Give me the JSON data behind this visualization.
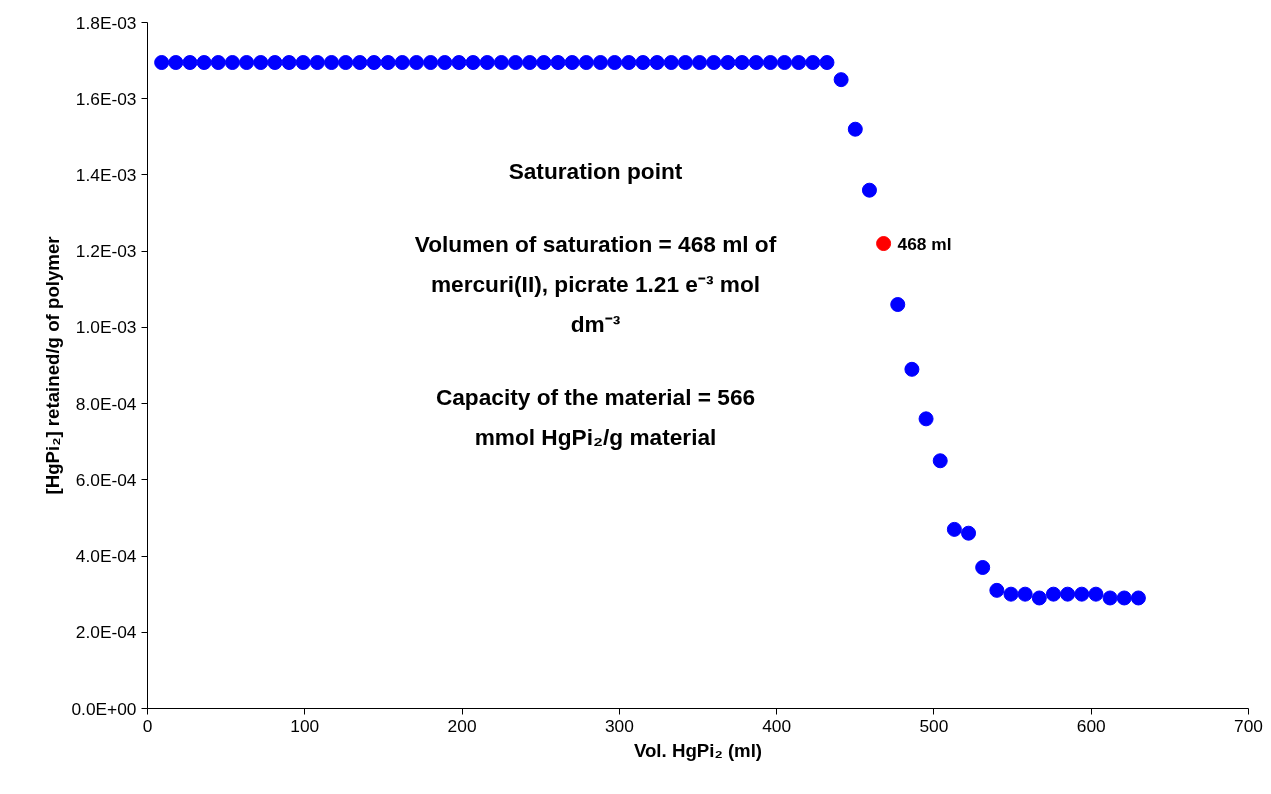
{
  "chart_data": {
    "type": "scatter",
    "xlabel": "Vol. HgPi₂ (ml)",
    "ylabel": "[HgPi₂] retained/g of polymer",
    "xlim": [
      0,
      700
    ],
    "xticks": [
      0,
      100,
      200,
      300,
      400,
      500,
      600,
      700
    ],
    "ylim": [
      0,
      0.0018
    ],
    "yticks": [
      {
        "value": 0,
        "label": "0.0E+00"
      },
      {
        "value": 0.0002,
        "label": "2.0E-04"
      },
      {
        "value": 0.0004,
        "label": "4.0E-04"
      },
      {
        "value": 0.0006,
        "label": "6.0E-04"
      },
      {
        "value": 0.0008,
        "label": "8.0E-04"
      },
      {
        "value": 0.001,
        "label": "1.0E-03"
      },
      {
        "value": 0.0012,
        "label": "1.2E-03"
      },
      {
        "value": 0.0014,
        "label": "1.4E-03"
      },
      {
        "value": 0.0016,
        "label": "1.6E-03"
      },
      {
        "value": 0.0018,
        "label": "1.8E-03"
      }
    ],
    "grid": false,
    "marker": "circle",
    "series": [
      {
        "color": "#0000ff",
        "x": [
          9,
          18,
          27,
          36,
          45,
          54,
          63,
          72,
          81,
          90,
          99,
          108,
          117,
          126,
          135,
          144,
          153,
          162,
          171,
          180,
          189,
          198,
          207,
          216,
          225,
          234,
          243,
          252,
          261,
          270,
          279,
          288,
          297,
          306,
          315,
          324,
          333,
          342,
          351,
          360,
          369,
          378,
          387,
          396,
          405,
          414,
          423,
          432,
          441,
          450,
          459,
          477,
          486,
          495,
          504,
          513,
          522,
          531,
          540,
          549,
          558,
          567,
          576,
          585,
          594,
          603,
          612,
          621,
          630
        ],
        "values": [
          0.001695,
          0.001695,
          0.001695,
          0.001695,
          0.001695,
          0.001695,
          0.001695,
          0.001695,
          0.001695,
          0.001695,
          0.001695,
          0.001695,
          0.001695,
          0.001695,
          0.001695,
          0.001695,
          0.001695,
          0.001695,
          0.001695,
          0.001695,
          0.001695,
          0.001695,
          0.001695,
          0.001695,
          0.001695,
          0.001695,
          0.001695,
          0.001695,
          0.001695,
          0.001695,
          0.001695,
          0.001695,
          0.001695,
          0.001695,
          0.001695,
          0.001695,
          0.001695,
          0.001695,
          0.001695,
          0.001695,
          0.001695,
          0.001695,
          0.001695,
          0.001695,
          0.001695,
          0.001695,
          0.001695,
          0.001695,
          0.00165,
          0.00152,
          0.00136,
          0.00106,
          0.00089,
          0.00076,
          0.00065,
          0.00047,
          0.00046,
          0.00037,
          0.00031,
          0.0003,
          0.0003,
          0.00029,
          0.0003,
          0.0003,
          0.0003,
          0.0003,
          0.00029,
          0.00029,
          0.00029
        ]
      },
      {
        "color": "#ff0000",
        "x": [
          468
        ],
        "values": [
          0.00122
        ]
      }
    ],
    "annotations": [
      "Saturation point",
      "Volumen of saturation = 468 ml of mercuri(II), picrate 1.21 e⁻³ mol dm⁻³",
      "Capacity of the material = 566 mmol HgPi₂/g material",
      "468 ml"
    ]
  }
}
